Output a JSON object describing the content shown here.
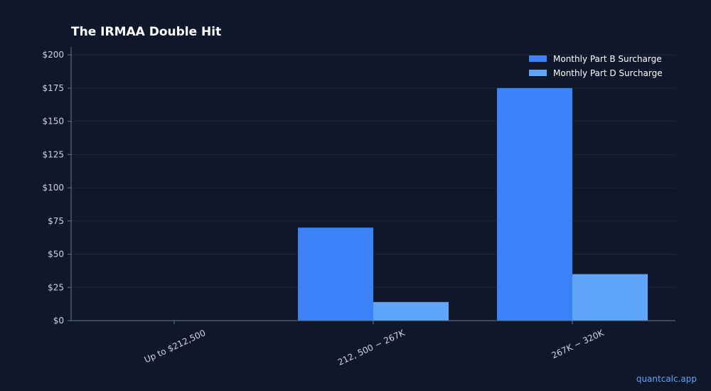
{
  "chart_data": {
    "type": "bar",
    "title": "The IRMAA Double Hit",
    "categories": [
      "Up to $212,500",
      "212, 500 − 267K",
      "267K − 320K"
    ],
    "series": [
      {
        "name": "Monthly Part B Surcharge",
        "values": [
          0,
          70,
          175
        ],
        "color": "#3b82f6"
      },
      {
        "name": "Monthly Part D Surcharge",
        "values": [
          0,
          14,
          35
        ],
        "color": "#60a5fa"
      }
    ],
    "y_ticks": [
      "$0",
      "$25",
      "$50",
      "$75",
      "$100",
      "$125",
      "$150",
      "$175",
      "$200"
    ],
    "y_tick_values": [
      0,
      25,
      50,
      75,
      100,
      125,
      150,
      175,
      200
    ],
    "ylim": [
      0,
      206
    ],
    "grid": true,
    "legend_position": "top-right"
  },
  "watermark": "quantcalc.app",
  "colors": {
    "background": "#0f172a",
    "grid": "#1e293b",
    "axis": "#64748b"
  }
}
